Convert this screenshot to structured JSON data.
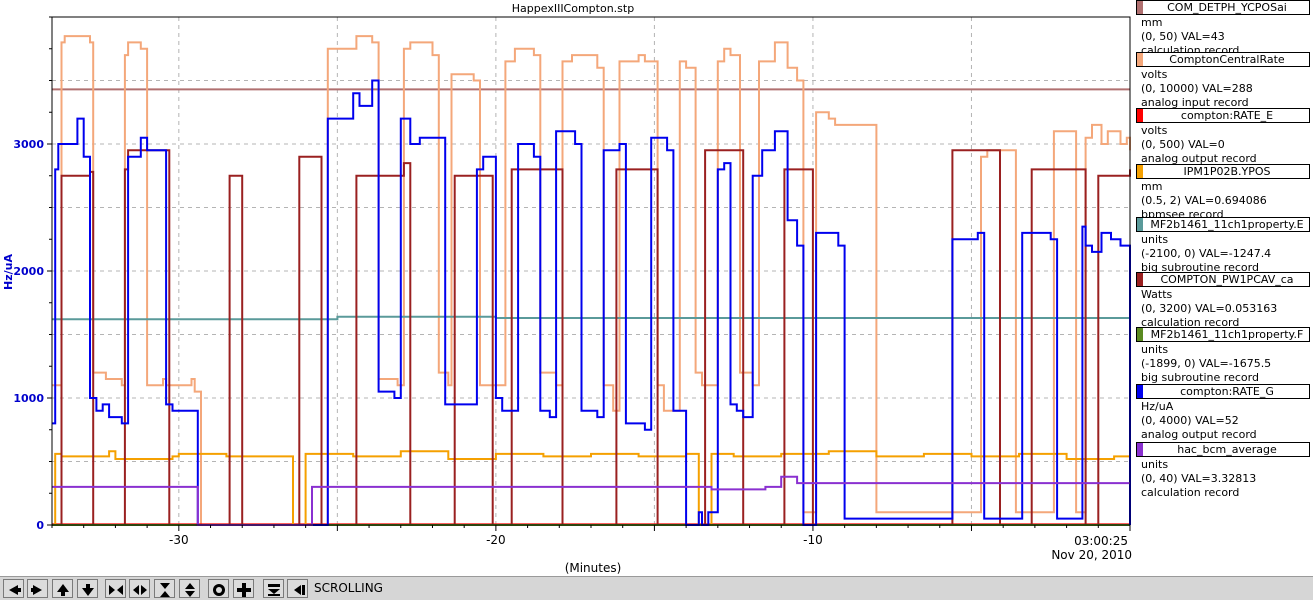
{
  "window": {
    "title": "HappexIIICompton.stp"
  },
  "chart_data": {
    "type": "line",
    "title": "HappexIIICompton.stp",
    "xlabel": "(Minutes)",
    "ylabel": "Hz/uA",
    "xlim": [
      -34,
      0
    ],
    "ylim": [
      0,
      4000
    ],
    "x_ticks": [
      {
        "value": -30,
        "label": "-30"
      },
      {
        "value": -20,
        "label": "-20"
      },
      {
        "value": -10,
        "label": "-10"
      }
    ],
    "y_ticks": [
      {
        "value": 0,
        "label": "0"
      },
      {
        "value": 1000,
        "label": "1000"
      },
      {
        "value": 2000,
        "label": "2000"
      },
      {
        "value": 3000,
        "label": "3000"
      }
    ],
    "x_end_time": "03:00:25",
    "x_end_date": "Nov 20, 2010",
    "grid": true,
    "series": [
      {
        "name": "COM_DETPH_YCPOSai",
        "color": "#b07070",
        "x": [
          -34,
          0
        ],
        "y": [
          3430,
          3430
        ]
      },
      {
        "name": "ComptonCentralRate",
        "color": "#f4a77a",
        "x": [
          -34,
          -33.7,
          -33.6,
          -32.8,
          -32.7,
          -32.4,
          -32.3,
          -31.8,
          -31.7,
          -31.6,
          -31.2,
          -31.0,
          -30.5,
          -30.4,
          -29.6,
          -29.5,
          -29.3,
          -25.5,
          -25.3,
          -24.4,
          -23.9,
          -23.7,
          -23.1,
          -22.9,
          -22.7,
          -22.0,
          -21.8,
          -21.5,
          -21.4,
          -20.7,
          -20.5,
          -19.9,
          -19.7,
          -19.4,
          -18.8,
          -18.6,
          -18.1,
          -17.9,
          -17.6,
          -16.8,
          -16.6,
          -16.3,
          -16.1,
          -15.5,
          -15.3,
          -14.9,
          -14.7,
          -14.2,
          -14.0,
          -13.7,
          -13.5,
          -13.0,
          -12.8,
          -12.6,
          -12.3,
          -11.9,
          -11.7,
          -11.2,
          -10.8,
          -10.5,
          -10.3,
          -10.1,
          -9.9,
          -9.5,
          -9.3,
          -8.0,
          -7.8,
          -5.8,
          -5.6,
          -4.7,
          -4.5,
          -3.6,
          -3.4,
          -2.4,
          -2.2,
          -1.7,
          -1.5,
          -1.4,
          -1.2,
          -0.9,
          -0.7,
          -0.3,
          -0.1,
          0
        ],
        "y": [
          1100,
          3800,
          3850,
          3800,
          1200,
          1200,
          1150,
          1100,
          3700,
          3800,
          3750,
          1100,
          1150,
          1100,
          1150,
          1050,
          0,
          0,
          3750,
          3850,
          3800,
          1150,
          1100,
          3750,
          3800,
          3700,
          1200,
          1100,
          3550,
          3500,
          1100,
          1100,
          3650,
          3750,
          3700,
          1200,
          1100,
          3650,
          3700,
          3600,
          1100,
          900,
          3650,
          3700,
          3650,
          1100,
          900,
          3650,
          3600,
          1200,
          1100,
          3650,
          3750,
          3700,
          1200,
          1100,
          3650,
          3800,
          3600,
          3500,
          100,
          100,
          3250,
          3200,
          3150,
          100,
          100,
          100,
          100,
          2900,
          2950,
          100,
          100,
          3100,
          3100,
          100,
          100,
          3050,
          3150,
          3000,
          3100,
          3000,
          3050,
          2950
        ]
      },
      {
        "name": "compton:RATE_E",
        "color": "#ff0000",
        "x": [
          -34,
          0
        ],
        "y": [
          5,
          5
        ]
      },
      {
        "name": "IPM1P02B.YPOS",
        "color": "#f5a000",
        "x": [
          -34,
          -33.9,
          -33.7,
          -32.2,
          -32.0,
          -30.2,
          -30.0,
          -28.5,
          -26.4,
          -26.2,
          -26.0,
          -24.5,
          -23.0,
          -21.5,
          -20.0,
          -18.5,
          -17.0,
          -15.5,
          -14.0,
          -13.6,
          -13.4,
          -13.2,
          -12.5,
          -11.0,
          -9.5,
          -8.0,
          -6.5,
          -5.0,
          -3.5,
          -2.0,
          -0.5,
          0
        ],
        "y": [
          0,
          560,
          540,
          580,
          520,
          540,
          560,
          540,
          0,
          0,
          560,
          540,
          580,
          520,
          560,
          540,
          560,
          540,
          560,
          0,
          0,
          560,
          540,
          560,
          580,
          540,
          560,
          540,
          560,
          520,
          540,
          560
        ]
      },
      {
        "name": "MF2b1461_11ch1property.E",
        "color": "#5a9a9a",
        "x": [
          -34,
          -25,
          -20,
          -10,
          0
        ],
        "y": [
          1620,
          1640,
          1630,
          1630,
          1640
        ]
      },
      {
        "name": "COMPTON_PW1PCAV_ca",
        "color": "#9a2020",
        "x": [
          -34,
          -33.8,
          -33.7,
          -32.8,
          -32.7,
          -31.8,
          -31.7,
          -31.6,
          -30.4,
          -30.3,
          -28.5,
          -28.4,
          -28.1,
          -28.0,
          -26.3,
          -26.2,
          -25.6,
          -25.5,
          -24.5,
          -24.4,
          -22.9,
          -22.7,
          -21.4,
          -21.3,
          -20.2,
          -20.1,
          -19.6,
          -19.5,
          -18.0,
          -17.9,
          -16.3,
          -16.2,
          -15.0,
          -14.9,
          -13.5,
          -13.4,
          -12.3,
          -12.2,
          -11.0,
          -10.9,
          -10.1,
          -10.0,
          -5.7,
          -5.6,
          -4.2,
          -4.1,
          -3.2,
          -3.1,
          -1.5,
          -1.4,
          -1.1,
          -1.0,
          0
        ],
        "y": [
          0,
          0,
          2750,
          2780,
          0,
          0,
          2800,
          2950,
          2950,
          0,
          0,
          2750,
          2750,
          0,
          0,
          2900,
          2900,
          0,
          0,
          2750,
          2850,
          0,
          0,
          2750,
          2750,
          0,
          0,
          2800,
          2800,
          0,
          0,
          2800,
          2800,
          0,
          0,
          2950,
          2950,
          0,
          0,
          2800,
          2800,
          0,
          0,
          2950,
          2950,
          0,
          0,
          2800,
          2800,
          0,
          0,
          2750,
          2800
        ]
      },
      {
        "name": "MF2b1461_11ch1property.F",
        "color": "#5a8a20",
        "x": [
          -34,
          0
        ],
        "y": [
          0,
          0
        ]
      },
      {
        "name": "compton:RATE_G",
        "color": "#0000ee",
        "x": [
          -34,
          -33.9,
          -33.8,
          -33.2,
          -33.0,
          -32.8,
          -32.6,
          -32.4,
          -32.2,
          -31.8,
          -31.6,
          -31.2,
          -31.0,
          -30.4,
          -30.2,
          -29.5,
          -29.4,
          -25.5,
          -25.3,
          -24.5,
          -24.3,
          -23.9,
          -23.7,
          -23.2,
          -23.0,
          -22.7,
          -22.4,
          -21.6,
          -21.4,
          -20.6,
          -20.4,
          -20.0,
          -19.8,
          -19.3,
          -18.8,
          -18.6,
          -18.3,
          -18.1,
          -17.5,
          -17.3,
          -16.8,
          -16.6,
          -16.1,
          -15.9,
          -15.3,
          -15.1,
          -14.6,
          -14.4,
          -14.0,
          -13.7,
          -13.6,
          -13.5,
          -13.3,
          -13.0,
          -12.8,
          -12.6,
          -12.4,
          -12.2,
          -11.9,
          -11.6,
          -11.2,
          -10.8,
          -10.5,
          -10.3,
          -10.1,
          -9.9,
          -9.5,
          -9.2,
          -9.0,
          -7.8,
          -7.5,
          -5.8,
          -5.6,
          -4.8,
          -4.6,
          -3.6,
          -3.4,
          -2.5,
          -2.3,
          -1.7,
          -1.5,
          -1.4,
          -1.2,
          -0.9,
          -0.6,
          -0.3,
          0
        ],
        "y": [
          800,
          2800,
          3000,
          3200,
          2900,
          1000,
          900,
          950,
          850,
          800,
          2900,
          3050,
          2950,
          950,
          900,
          900,
          0,
          0,
          3200,
          3400,
          3300,
          3500,
          1050,
          1000,
          3200,
          3000,
          3050,
          950,
          950,
          2800,
          2900,
          1000,
          900,
          3000,
          2900,
          900,
          850,
          3100,
          3000,
          900,
          850,
          2950,
          3000,
          800,
          750,
          3050,
          2950,
          900,
          0,
          0,
          100,
          0,
          100,
          2800,
          2850,
          950,
          900,
          850,
          2750,
          2950,
          3100,
          2400,
          2200,
          0,
          0,
          2300,
          2300,
          2200,
          50,
          50,
          50,
          50,
          2250,
          2300,
          50,
          50,
          2300,
          2250,
          50,
          50,
          2350,
          2200,
          2150,
          2300,
          2250,
          2200,
          0
        ]
      },
      {
        "name": "hac_bcm_average",
        "color": "#8a30d0",
        "x": [
          -34,
          -29.5,
          -29.4,
          -26.0,
          -25.8,
          -13.4,
          -13.2,
          -11.5,
          -11.0,
          -10.5,
          0
        ],
        "y": [
          300,
          300,
          0,
          0,
          300,
          300,
          280,
          300,
          380,
          330,
          330
        ]
      }
    ]
  },
  "legend": {
    "entries": [
      {
        "name": "COM_DETPH_YCPOSai",
        "color": "#b07070",
        "unit": "mm",
        "range": "(0, 50)  VAL=43",
        "type": "calculation record"
      },
      {
        "name": "ComptonCentralRate",
        "color": "#f4a77a",
        "unit": "volts",
        "range": "(0, 10000) VAL=288",
        "type": "analog input record"
      },
      {
        "name": "compton:RATE_E",
        "color": "#ff0000",
        "unit": "volts",
        "range": "(0, 500)  VAL=0",
        "type": "analog output record"
      },
      {
        "name": "IPM1P02B.YPOS",
        "color": "#f5a000",
        "unit": "mm",
        "range": "(0.5, 2) VAL=0.694086",
        "type": "bpmsee record"
      },
      {
        "name": "MF2b1461_11ch1property.E",
        "color": "#5a9a9a",
        "unit": "units",
        "range": "(-2100, 0) VAL=-1247.4",
        "type": "big subroutine record"
      },
      {
        "name": "COMPTON_PW1PCAV_ca",
        "color": "#9a2020",
        "unit": "Watts",
        "range": "(0, 3200) VAL=0.053163",
        "type": "calculation record"
      },
      {
        "name": "MF2b1461_11ch1property.F",
        "color": "#5a8a20",
        "unit": "units",
        "range": "(-1899, 0)  VAL=-1675.5",
        "type": "big subroutine record"
      },
      {
        "name": "compton:RATE_G",
        "color": "#0000ee",
        "unit": "Hz/uA",
        "range": "(0, 4000) VAL=52",
        "type": "analog output record"
      },
      {
        "name": "hac_bcm_average",
        "color": "#8a30d0",
        "unit": "units",
        "range": "(0, 40) VAL=3.32813",
        "type": "calculation record"
      }
    ]
  },
  "toolbar": {
    "buttons": [
      "arrow-left-icon",
      "arrow-right-icon",
      "arrow-up-icon",
      "arrow-down-icon",
      "zoom-in-horizontal-icon",
      "zoom-out-horizontal-icon",
      "zoom-in-vertical-icon",
      "zoom-out-vertical-icon",
      "autoscale-icon",
      "center-icon",
      "config-icon",
      "back-to-now-icon"
    ],
    "mode": "SCROLLING"
  }
}
